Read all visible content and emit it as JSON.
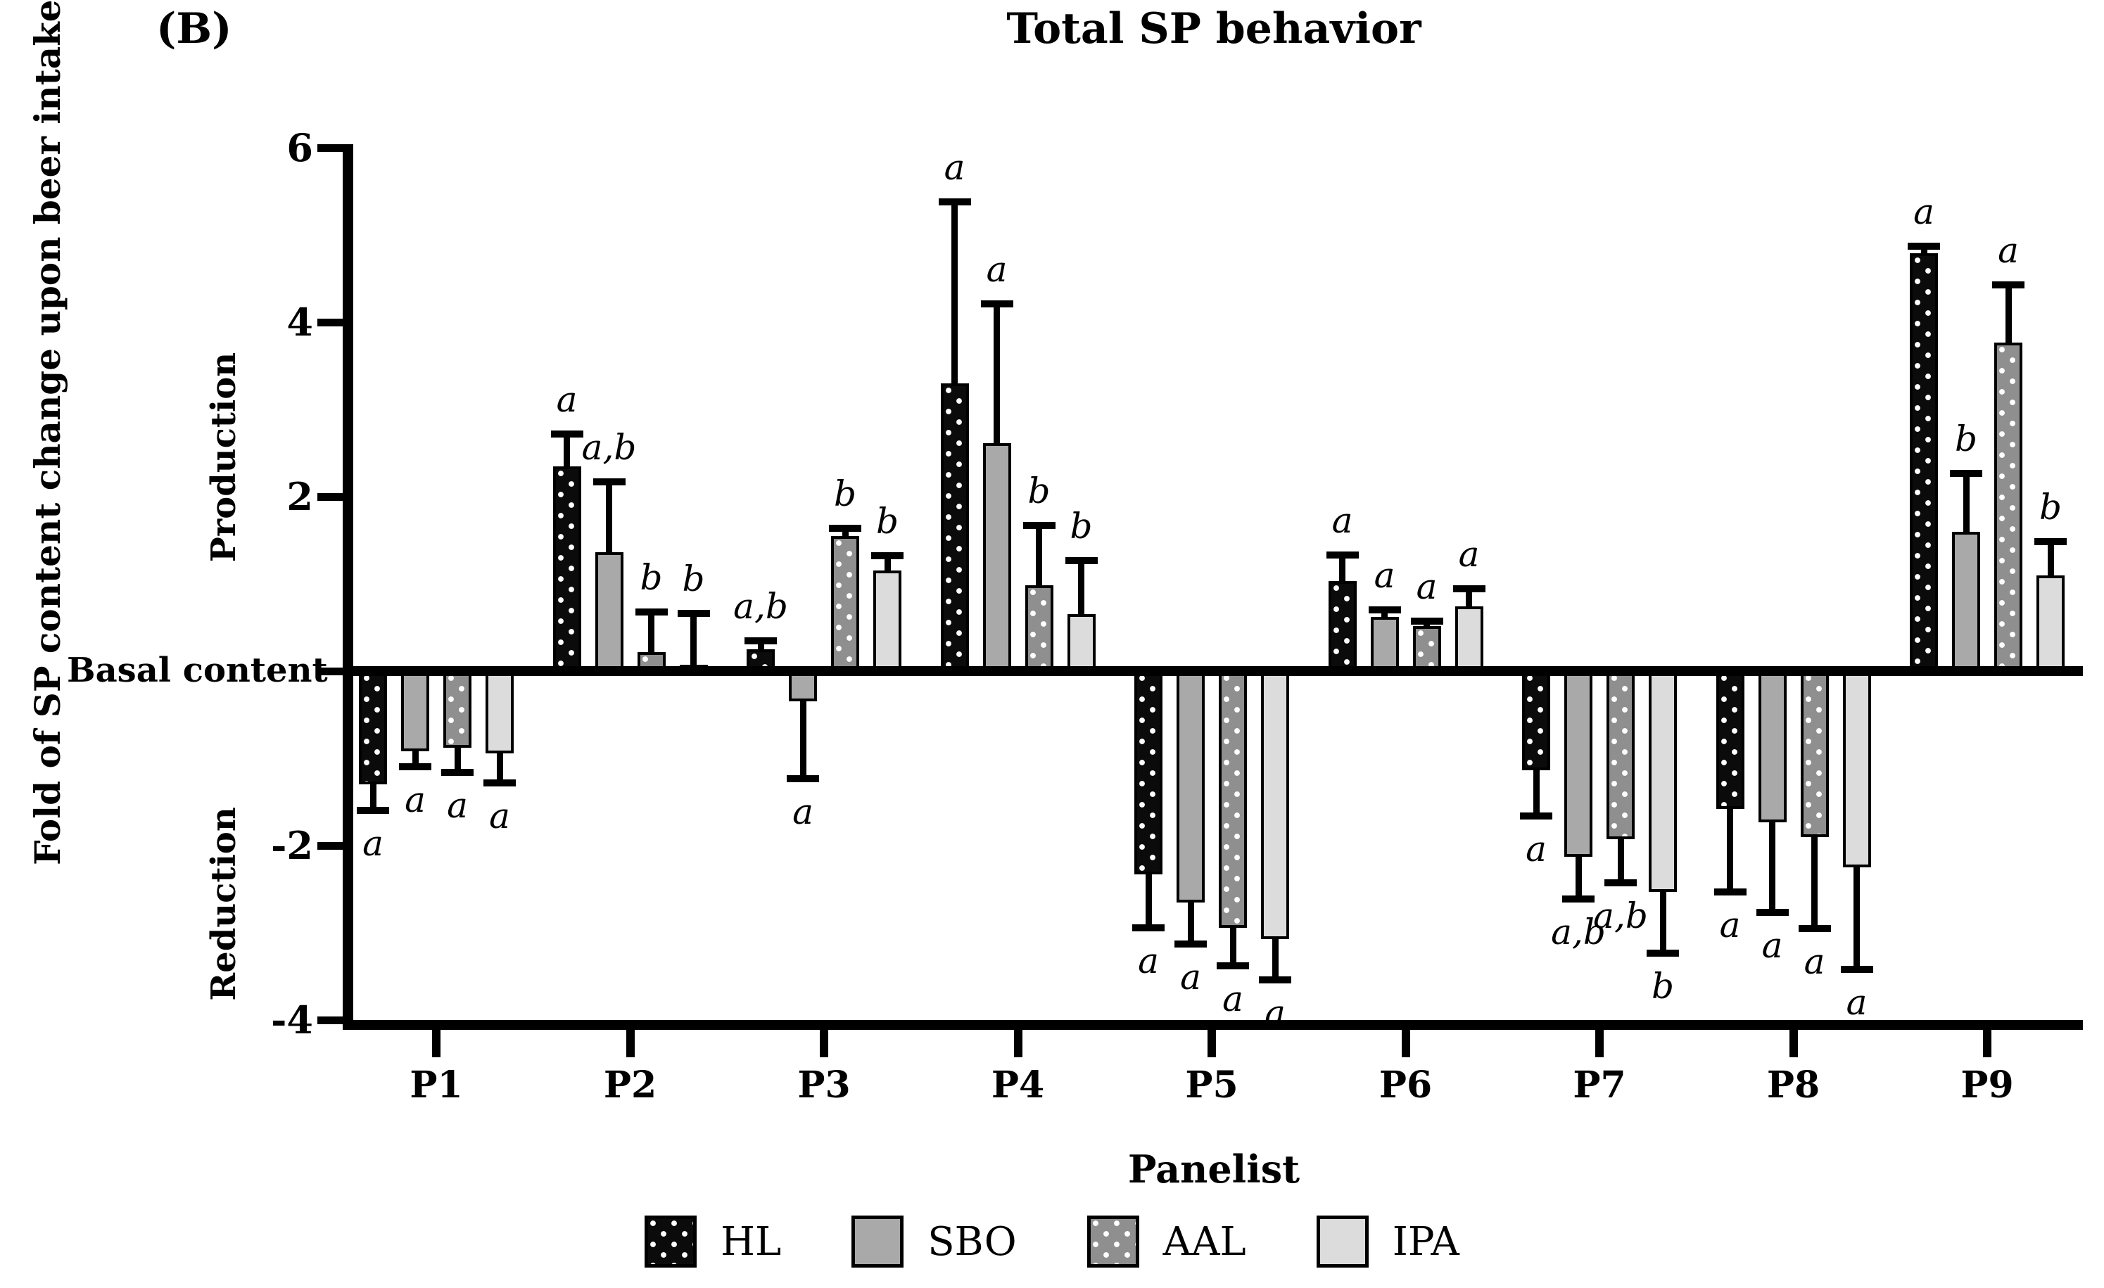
{
  "panel_label": "(B)",
  "title": "Total SP behavior",
  "y_axis": {
    "label": "Fold of SP content change upon beer intake",
    "production_label": "Production",
    "reduction_label": "Reduction",
    "basal_label": "Basal content",
    "tick_labels": [
      "6",
      "4",
      "2",
      "-2",
      "-4"
    ]
  },
  "x_axis": {
    "title": "Panelist"
  },
  "legend": [
    {
      "label": "HL",
      "color": "#0b0b0b",
      "dots": true
    },
    {
      "label": "SBO",
      "color": "#a9a9a9",
      "dots": false
    },
    {
      "label": "AAL",
      "color": "#8f8f8f",
      "dots": true
    },
    {
      "label": "IPA",
      "color": "#dcdcdc",
      "dots": false
    }
  ],
  "chart_data": {
    "type": "bar",
    "title": "Total SP behavior",
    "xlabel": "Panelist",
    "ylabel": "Fold of SP content change upon beer intake",
    "ylim": [
      -4,
      6
    ],
    "yticks_labeled": [
      6,
      4,
      2,
      -2,
      -4
    ],
    "baseline_tick": 0,
    "grid": false,
    "legend_position": "bottom",
    "categories": [
      "P1",
      "P2",
      "P3",
      "P4",
      "P5",
      "P6",
      "P7",
      "P8",
      "P9"
    ],
    "series": [
      {
        "name": "HL",
        "values": [
          -1.3,
          2.35,
          0.25,
          3.3,
          -2.33,
          1.03,
          -1.14,
          -1.58,
          4.79
        ],
        "errors": [
          0.3,
          0.37,
          0.1,
          2.08,
          0.61,
          0.3,
          0.52,
          0.95,
          0.08
        ],
        "sig": [
          "a",
          "a",
          "a,b",
          "a",
          "a",
          "a",
          "a",
          "a",
          "a"
        ]
      },
      {
        "name": "SBO",
        "values": [
          -0.92,
          1.36,
          -0.35,
          2.61,
          -2.65,
          0.62,
          -2.13,
          -1.73,
          1.6
        ],
        "errors": [
          0.18,
          0.81,
          0.88,
          1.6,
          0.48,
          0.08,
          0.48,
          1.04,
          0.67
        ],
        "sig": [
          "a",
          "a,b",
          "a",
          "a",
          "a",
          "a",
          "a,b",
          "a",
          "b"
        ]
      },
      {
        "name": "AAL",
        "values": [
          -0.88,
          0.22,
          1.55,
          0.98,
          -2.94,
          0.52,
          -1.93,
          -1.9,
          3.77
        ],
        "errors": [
          0.28,
          0.46,
          0.09,
          0.69,
          0.44,
          0.05,
          0.5,
          1.05,
          0.66
        ],
        "sig": [
          "a",
          "b",
          "b",
          "b",
          "a",
          "a",
          "a,b",
          "a",
          "a"
        ]
      },
      {
        "name": "IPA",
        "values": [
          -0.94,
          0.07,
          1.15,
          0.65,
          -3.07,
          0.74,
          -2.53,
          -2.25,
          1.1
        ],
        "errors": [
          0.34,
          0.59,
          0.17,
          0.62,
          0.47,
          0.2,
          0.7,
          1.17,
          0.38
        ],
        "sig": [
          "a",
          "b",
          "b",
          "b",
          "a",
          "a",
          "b",
          "a",
          "b"
        ]
      }
    ]
  }
}
